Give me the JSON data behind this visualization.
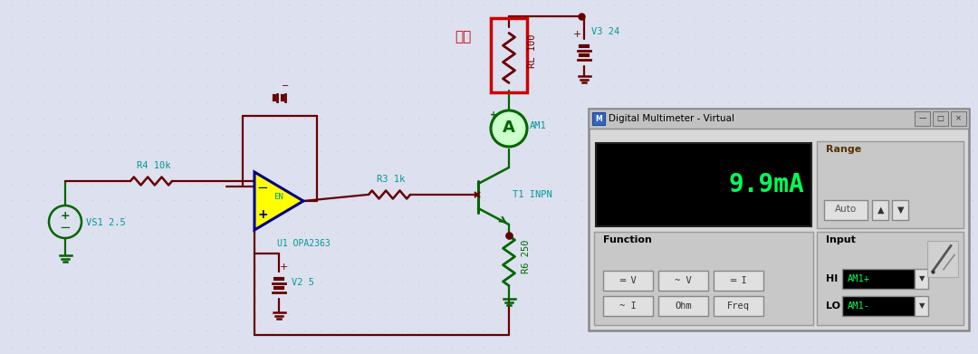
{
  "bg_color": "#dde0ee",
  "dot_color": "#b8bcd0",
  "fig_width": 10.8,
  "fig_height": 3.91,
  "dm": {
    "title": "Digital Multimeter - Virtual",
    "display_text": "9.9mA",
    "display_color": "#00ff55",
    "range_label": "Range",
    "function_label": "Function",
    "input_label": "Input",
    "hi_label": "HI",
    "lo_label": "LO",
    "hi_val": "AM1+",
    "lo_val": "AM1-",
    "btn_dc_v": "═ V",
    "btn_ac_v": "~ V",
    "btn_dc_i": "═ I",
    "btn_ac_i": "~ I",
    "btn_ohm": "Ohm",
    "btn_freq": "Freq",
    "btn_auto": "Auto"
  },
  "comp": {
    "vs1": "VS1 2.5",
    "r4": "R4 10k",
    "u1": "U1 OPA2363",
    "en": "EN",
    "r3": "R3 1k",
    "t1": "T1 INPN",
    "rl": "RL 100",
    "am1": "AM1",
    "v3": "V3 24",
    "v2": "V2 5",
    "r6": "R6 250",
    "fuzai": "负载"
  },
  "colors": {
    "wd": "#660000",
    "wg": "#006600",
    "wc": "#009999",
    "op_fill": "#ffff00",
    "op_border": "#000088",
    "red_box": "#cc0000",
    "lc": "#009999",
    "lr": "#cc0000",
    "lg": "#006600"
  }
}
